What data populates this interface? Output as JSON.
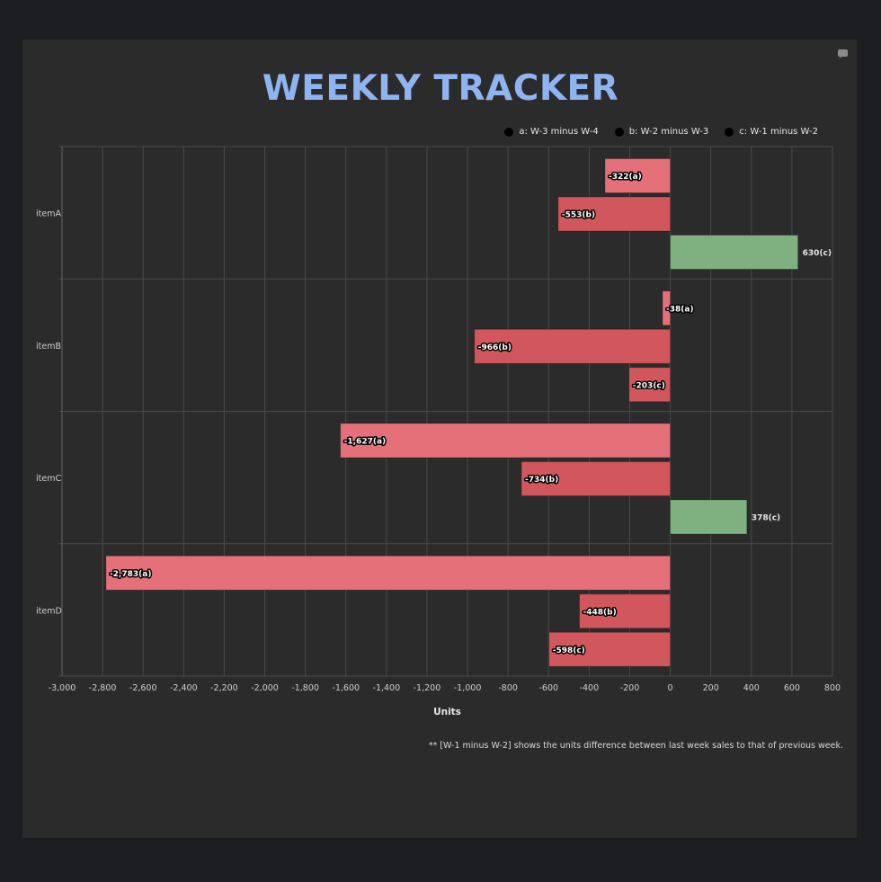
{
  "title": "WEEKLY TRACKER",
  "footnote": "** [W-1 minus W-2] shows the units difference between last week sales to that of previous week.",
  "colors": {
    "background": "#1d1e21",
    "panel": "#2b2b2b",
    "title": "#8fb4f2",
    "series_a": "#e5707a",
    "series_b": "#d1575c",
    "positive": "#7fb07f",
    "grid": "#4a4a4a"
  },
  "chart_data": {
    "type": "bar",
    "orientation": "horizontal",
    "categories": [
      "itemA",
      "itemB",
      "itemC",
      "itemD"
    ],
    "series": [
      {
        "name": "a: W-3 minus W-4",
        "key": "a",
        "values": [
          -322,
          -38,
          -1627,
          -2783
        ]
      },
      {
        "name": "b: W-2 minus W-3",
        "key": "b",
        "values": [
          -553,
          -966,
          -734,
          -448
        ]
      },
      {
        "name": "c: W-1 minus W-2",
        "key": "c",
        "values": [
          630,
          -203,
          378,
          -598
        ]
      }
    ],
    "xlabel": "Units",
    "xlim": [
      -3000,
      800
    ],
    "xticks": [
      -3000,
      -2800,
      -2600,
      -2400,
      -2200,
      -2000,
      -1800,
      -1600,
      -1400,
      -1200,
      -1000,
      -800,
      -600,
      -400,
      -200,
      0,
      200,
      400,
      600,
      800
    ],
    "xtick_labels": [
      "-3,000",
      "-2,800",
      "-2,600",
      "-2,400",
      "-2,200",
      "-2,000",
      "-1,800",
      "-1,600",
      "-1,400",
      "-1,200",
      "-1,000",
      "-800",
      "-600",
      "-400",
      "-200",
      "0",
      "200",
      "400",
      "600",
      "800"
    ],
    "data_labels": [
      [
        "-322(a)",
        "-553(b)",
        "630(c)"
      ],
      [
        "-38(a)",
        "-966(b)",
        "-203(c)"
      ],
      [
        "-1,627(a)",
        "-734(b)",
        "378(c)"
      ],
      [
        "-2,783(a)",
        "-448(b)",
        "-598(c)"
      ]
    ],
    "grid": true,
    "legend_position": "top-right"
  }
}
